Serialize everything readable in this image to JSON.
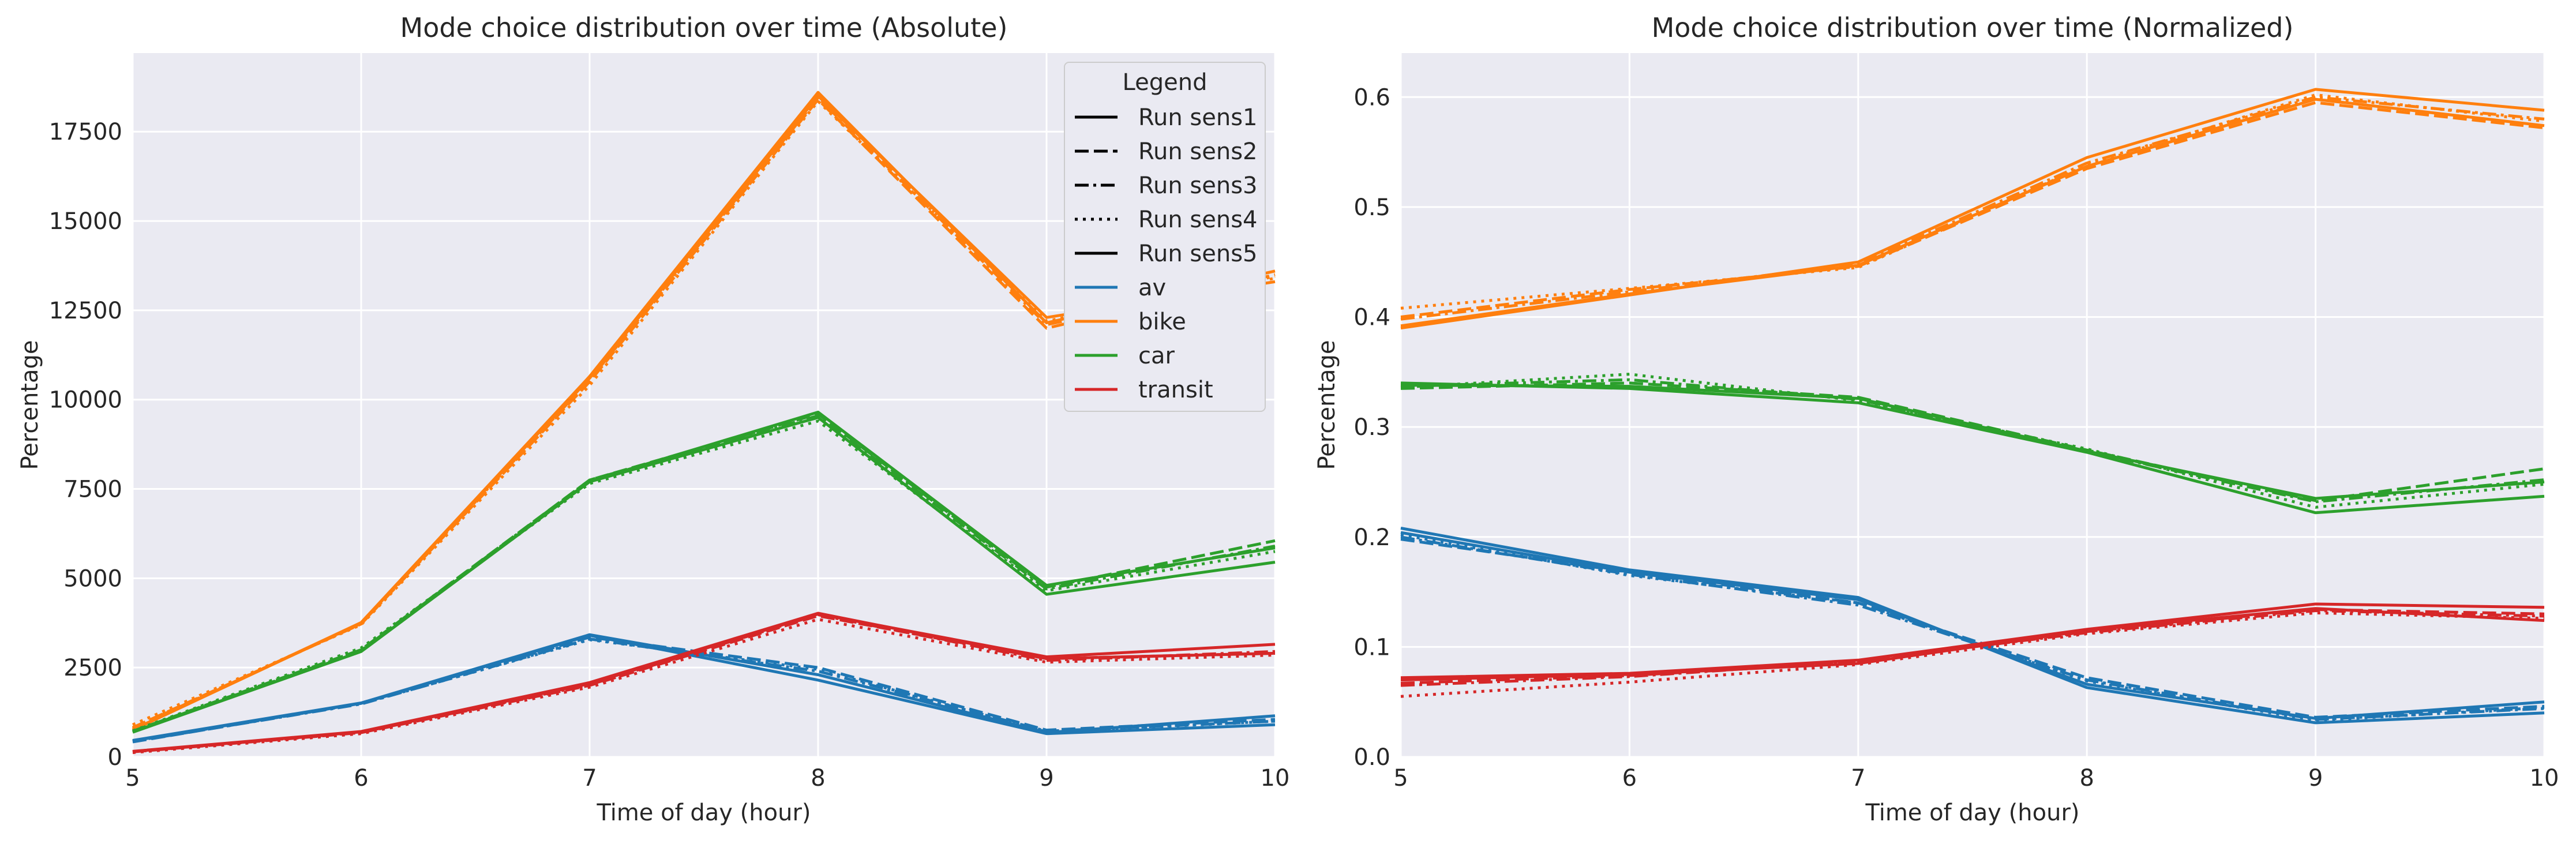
{
  "chart_data": [
    {
      "type": "line",
      "title": "Mode choice distribution over time (Absolute)",
      "xlabel": "Time of day (hour)",
      "ylabel": "Percentage",
      "x": [
        5,
        6,
        7,
        8,
        9,
        10
      ],
      "xlim": [
        5,
        10
      ],
      "ylim": [
        0,
        19700
      ],
      "xticks": [
        "5",
        "6",
        "7",
        "8",
        "9",
        "10"
      ],
      "yticks": [
        0,
        2500,
        5000,
        7500,
        10000,
        12500,
        15000,
        17500
      ],
      "ytick_labels": [
        "0",
        "2500",
        "5000",
        "7500",
        "10000",
        "12500",
        "15000",
        "17500"
      ],
      "series": [
        {
          "mode": "av",
          "run": "Run sens1",
          "values": [
            450,
            1500,
            3400,
            2150,
            650,
            900
          ]
        },
        {
          "mode": "av",
          "run": "Run sens2",
          "values": [
            420,
            1500,
            3350,
            2500,
            750,
            1050
          ]
        },
        {
          "mode": "av",
          "run": "Run sens3",
          "values": [
            430,
            1480,
            3300,
            2400,
            720,
            1000
          ]
        },
        {
          "mode": "av",
          "run": "Run sens4",
          "values": [
            440,
            1490,
            3280,
            2450,
            700,
            1000
          ]
        },
        {
          "mode": "av",
          "run": "Run sens5",
          "values": [
            460,
            1510,
            3420,
            2300,
            680,
            1150
          ]
        },
        {
          "mode": "bike",
          "run": "Run sens1",
          "values": [
            750,
            3750,
            10600,
            18500,
            12300,
            13300
          ]
        },
        {
          "mode": "bike",
          "run": "Run sens2",
          "values": [
            820,
            3720,
            10500,
            18400,
            12000,
            13500
          ]
        },
        {
          "mode": "bike",
          "run": "Run sens3",
          "values": [
            800,
            3730,
            10550,
            18450,
            12100,
            13400
          ]
        },
        {
          "mode": "bike",
          "run": "Run sens4",
          "values": [
            900,
            3700,
            10400,
            18350,
            12200,
            13450
          ]
        },
        {
          "mode": "bike",
          "run": "Run sens5",
          "values": [
            760,
            3760,
            10650,
            18600,
            12150,
            13600
          ]
        },
        {
          "mode": "car",
          "run": "Run sens1",
          "values": [
            700,
            2950,
            7700,
            9500,
            4550,
            5450
          ]
        },
        {
          "mode": "car",
          "run": "Run sens2",
          "values": [
            720,
            3000,
            7750,
            9600,
            4750,
            6050
          ]
        },
        {
          "mode": "car",
          "run": "Run sens3",
          "values": [
            710,
            2980,
            7750,
            9550,
            4700,
            5900
          ]
        },
        {
          "mode": "car",
          "run": "Run sens4",
          "values": [
            730,
            3050,
            7650,
            9400,
            4650,
            5750
          ]
        },
        {
          "mode": "car",
          "run": "Run sens5",
          "values": [
            690,
            2950,
            7720,
            9650,
            4800,
            5850
          ]
        },
        {
          "mode": "transit",
          "run": "Run sens1",
          "values": [
            150,
            700,
            2050,
            4000,
            2800,
            3150
          ]
        },
        {
          "mode": "transit",
          "run": "Run sens2",
          "values": [
            140,
            680,
            2000,
            3950,
            2750,
            2900
          ]
        },
        {
          "mode": "transit",
          "run": "Run sens3",
          "values": [
            145,
            690,
            2020,
            3980,
            2700,
            2950
          ]
        },
        {
          "mode": "transit",
          "run": "Run sens4",
          "values": [
            120,
            650,
            1950,
            3850,
            2650,
            2850
          ]
        },
        {
          "mode": "transit",
          "run": "Run sens5",
          "values": [
            155,
            710,
            2080,
            4020,
            2750,
            2900
          ]
        }
      ]
    },
    {
      "type": "line",
      "title": "Mode choice distribution over time (Normalized)",
      "xlabel": "Time of day (hour)",
      "ylabel": "Percentage",
      "x": [
        5,
        6,
        7,
        8,
        9,
        10
      ],
      "xlim": [
        5,
        10
      ],
      "ylim": [
        0,
        0.64
      ],
      "xticks": [
        "5",
        "6",
        "7",
        "8",
        "9",
        "10"
      ],
      "yticks": [
        0,
        0.1,
        0.2,
        0.3,
        0.4,
        0.5,
        0.6
      ],
      "ytick_labels": [
        "0.0",
        "0.1",
        "0.2",
        "0.3",
        "0.4",
        "0.5",
        "0.6"
      ],
      "series": [
        {
          "mode": "av",
          "run": "Run sens1",
          "values": [
            0.208,
            0.17,
            0.145,
            0.063,
            0.031,
            0.04
          ]
        },
        {
          "mode": "av",
          "run": "Run sens2",
          "values": [
            0.198,
            0.168,
            0.14,
            0.072,
            0.036,
            0.046
          ]
        },
        {
          "mode": "av",
          "run": "Run sens3",
          "values": [
            0.2,
            0.166,
            0.138,
            0.07,
            0.034,
            0.044
          ]
        },
        {
          "mode": "av",
          "run": "Run sens4",
          "values": [
            0.202,
            0.165,
            0.14,
            0.069,
            0.033,
            0.045
          ]
        },
        {
          "mode": "av",
          "run": "Run sens5",
          "values": [
            0.204,
            0.168,
            0.143,
            0.066,
            0.035,
            0.05
          ]
        },
        {
          "mode": "bike",
          "run": "Run sens1",
          "values": [
            0.39,
            0.42,
            0.45,
            0.545,
            0.607,
            0.588
          ]
        },
        {
          "mode": "bike",
          "run": "Run sens2",
          "values": [
            0.4,
            0.425,
            0.446,
            0.535,
            0.595,
            0.572
          ]
        },
        {
          "mode": "bike",
          "run": "Run sens3",
          "values": [
            0.398,
            0.423,
            0.448,
            0.54,
            0.6,
            0.58
          ]
        },
        {
          "mode": "bike",
          "run": "Run sens4",
          "values": [
            0.408,
            0.426,
            0.445,
            0.538,
            0.602,
            0.578
          ]
        },
        {
          "mode": "bike",
          "run": "Run sens5",
          "values": [
            0.392,
            0.421,
            0.447,
            0.537,
            0.598,
            0.574
          ]
        },
        {
          "mode": "car",
          "run": "Run sens1",
          "values": [
            0.34,
            0.335,
            0.322,
            0.277,
            0.222,
            0.237
          ]
        },
        {
          "mode": "car",
          "run": "Run sens2",
          "values": [
            0.335,
            0.34,
            0.327,
            0.279,
            0.233,
            0.262
          ]
        },
        {
          "mode": "car",
          "run": "Run sens3",
          "values": [
            0.337,
            0.343,
            0.325,
            0.278,
            0.232,
            0.252
          ]
        },
        {
          "mode": "car",
          "run": "Run sens4",
          "values": [
            0.336,
            0.348,
            0.324,
            0.28,
            0.227,
            0.248
          ]
        },
        {
          "mode": "car",
          "run": "Run sens5",
          "values": [
            0.338,
            0.337,
            0.326,
            0.278,
            0.235,
            0.25
          ]
        },
        {
          "mode": "transit",
          "run": "Run sens1",
          "values": [
            0.072,
            0.076,
            0.088,
            0.116,
            0.139,
            0.136
          ]
        },
        {
          "mode": "transit",
          "run": "Run sens2",
          "values": [
            0.067,
            0.074,
            0.086,
            0.114,
            0.134,
            0.13
          ]
        },
        {
          "mode": "transit",
          "run": "Run sens3",
          "values": [
            0.065,
            0.073,
            0.087,
            0.113,
            0.133,
            0.128
          ]
        },
        {
          "mode": "transit",
          "run": "Run sens4",
          "values": [
            0.055,
            0.068,
            0.084,
            0.112,
            0.131,
            0.126
          ]
        },
        {
          "mode": "transit",
          "run": "Run sens5",
          "values": [
            0.07,
            0.075,
            0.085,
            0.115,
            0.135,
            0.124
          ]
        }
      ]
    }
  ],
  "legend": {
    "title": "Legend",
    "placement": "top-right",
    "style_entries": [
      {
        "label": "Run sens1",
        "dash": "solid"
      },
      {
        "label": "Run sens2",
        "dash": "dashed"
      },
      {
        "label": "Run sens3",
        "dash": "dashdot"
      },
      {
        "label": "Run sens4",
        "dash": "dotted"
      },
      {
        "label": "Run sens5",
        "dash": "solid"
      }
    ],
    "color_entries": [
      {
        "label": "av",
        "color": "#1f77b4"
      },
      {
        "label": "bike",
        "color": "#ff7f0e"
      },
      {
        "label": "car",
        "color": "#2ca02c"
      },
      {
        "label": "transit",
        "color": "#d62728"
      }
    ]
  },
  "colors": {
    "av": "#1f77b4",
    "bike": "#ff7f0e",
    "car": "#2ca02c",
    "transit": "#d62728",
    "plot_background": "#eaeaf2",
    "grid": "#ffffff"
  },
  "grid": true
}
